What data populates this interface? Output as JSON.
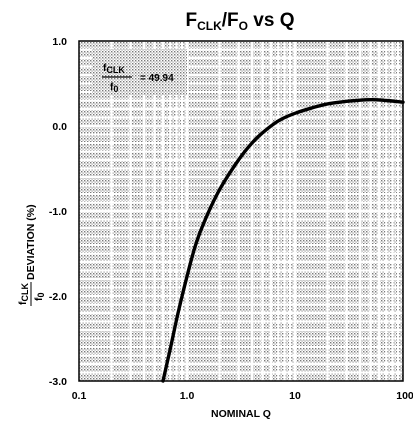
{
  "chart_data": {
    "type": "line",
    "title": {
      "main": "F",
      "sub1": "CLK",
      "slash": "/F",
      "sub2": "O",
      "suffix": " vs Q"
    },
    "xlabel": "NOMINAL Q",
    "ylabel": {
      "frac_num": "f",
      "frac_num_sub": "CLK",
      "frac_den": "f",
      "frac_den_sub": "0",
      "suffix": " DEVIATION (%)"
    },
    "x_scale": "log",
    "xlim": [
      0.1,
      100
    ],
    "ylim": [
      -3.0,
      1.0
    ],
    "x_ticks": [
      {
        "value": 0.1,
        "label": "0.1"
      },
      {
        "value": 1,
        "label": "1.0"
      },
      {
        "value": 10,
        "label": "10"
      },
      {
        "value": 100,
        "label": "100"
      }
    ],
    "y_ticks": [
      {
        "value": 1.0,
        "label": "1.0"
      },
      {
        "value": 0.0,
        "label": "0.0"
      },
      {
        "value": -1.0,
        "label": "-1.0"
      },
      {
        "value": -2.0,
        "label": "-2.0"
      },
      {
        "value": -3.0,
        "label": "-3.0"
      }
    ],
    "grid": true,
    "annotation": {
      "frac_num": "f",
      "frac_num_sub": "CLK",
      "frac_den": "f",
      "frac_den_sub": "0",
      "text": "= 49.94"
    },
    "series": [
      {
        "x": [
          0.6,
          0.7,
          0.8,
          0.9,
          1.0,
          1.2,
          1.5,
          2,
          3,
          4,
          5,
          7,
          10,
          15,
          20,
          30,
          50,
          70,
          100
        ],
        "y": [
          -3.0,
          -2.62,
          -2.28,
          -2.0,
          -1.77,
          -1.4,
          -1.08,
          -0.75,
          -0.4,
          -0.2,
          -0.08,
          0.06,
          0.15,
          0.22,
          0.26,
          0.29,
          0.31,
          0.3,
          0.28
        ]
      }
    ]
  }
}
